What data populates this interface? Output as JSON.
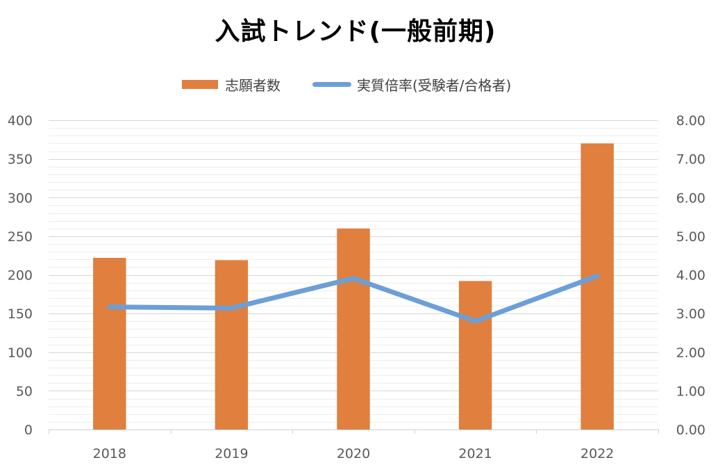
{
  "chart_data": {
    "type": "bar+line",
    "title": "入試トレンド(一般前期)",
    "categories": [
      "2018",
      "2019",
      "2020",
      "2021",
      "2022"
    ],
    "series": [
      {
        "name": "志願者数",
        "type": "bar",
        "axis": "left",
        "color": "#E07F3E",
        "values": [
          222,
          219,
          260,
          192,
          370
        ]
      },
      {
        "name": "実質倍率(受験者/合格者)",
        "type": "line",
        "axis": "right",
        "color": "#6C9FD6",
        "values": [
          3.17,
          3.14,
          3.91,
          2.8,
          3.97
        ]
      }
    ],
    "y_left": {
      "ylim": [
        0,
        400
      ],
      "ticks": [
        "0",
        "50",
        "100",
        "150",
        "200",
        "250",
        "300",
        "350",
        "400"
      ]
    },
    "y_right": {
      "ylim": [
        0,
        8
      ],
      "ticks": [
        "0.00",
        "1.00",
        "2.00",
        "3.00",
        "4.00",
        "5.00",
        "6.00",
        "7.00",
        "8.00"
      ]
    },
    "grid": true,
    "legend_position": "top"
  }
}
